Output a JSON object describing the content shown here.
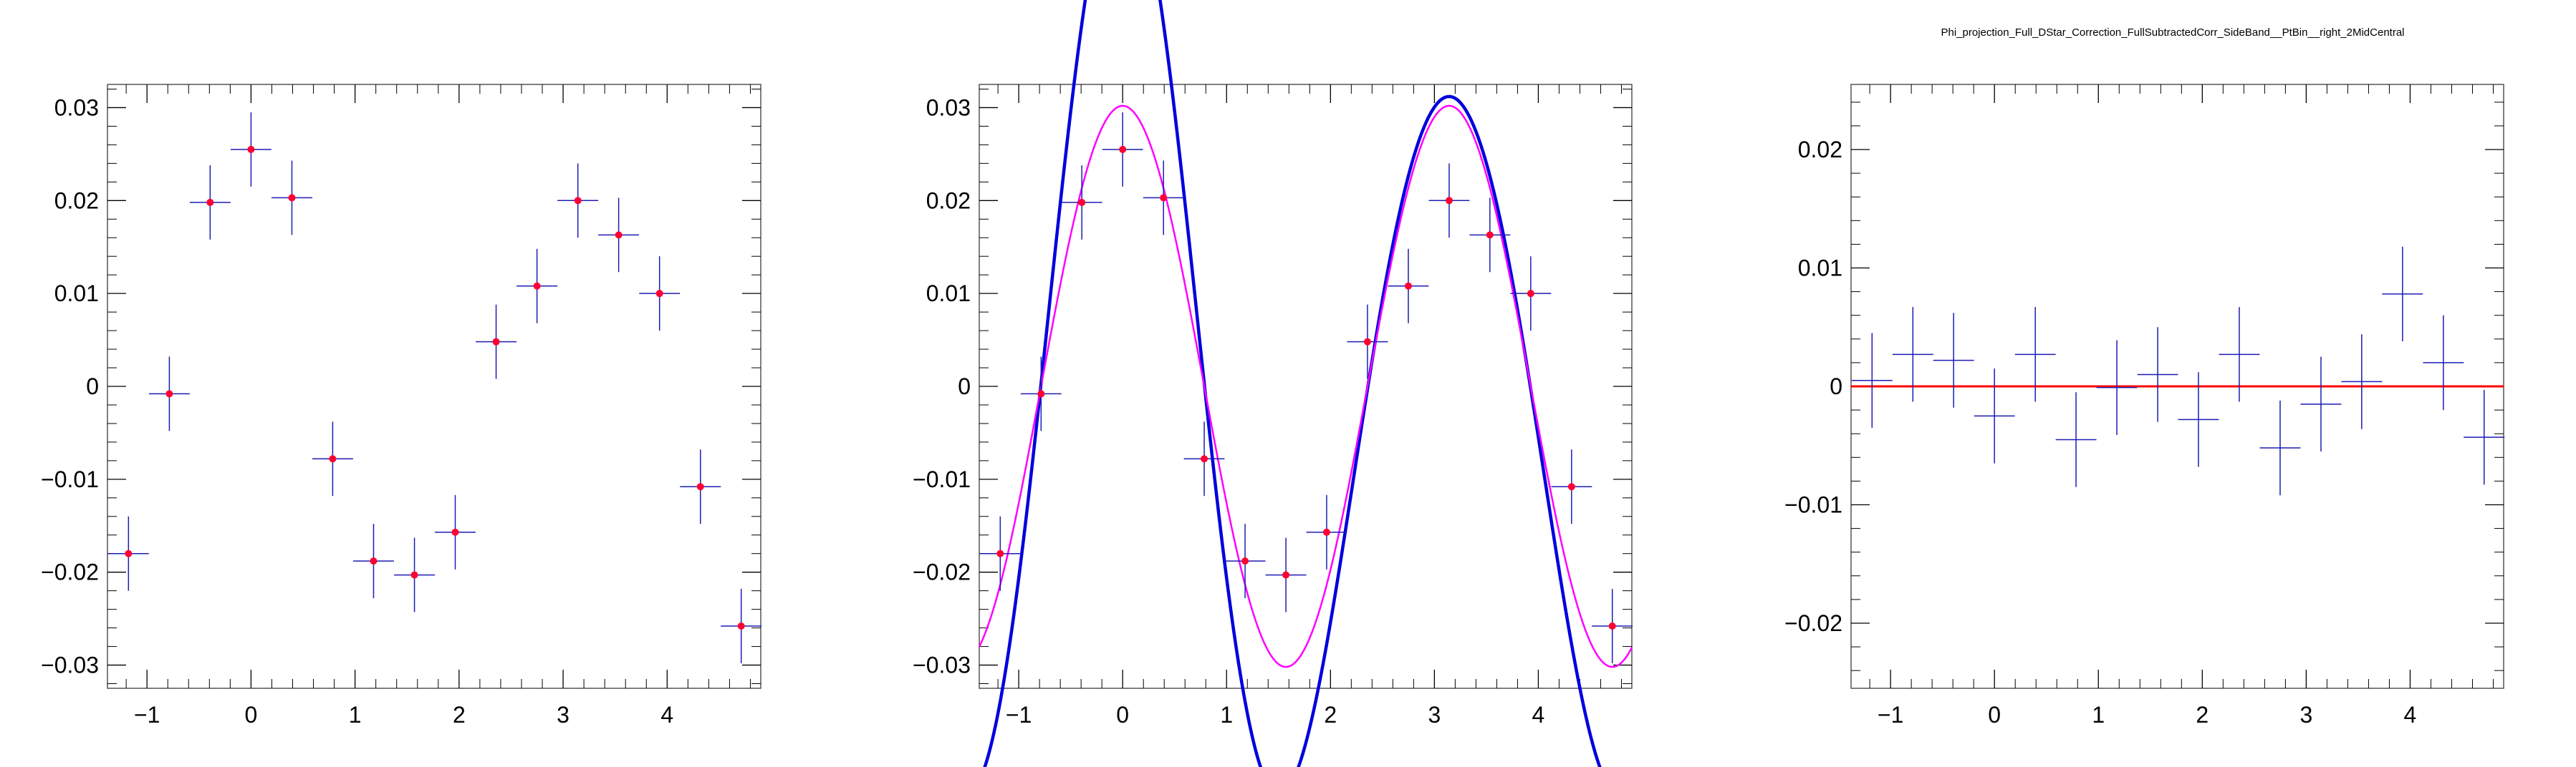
{
  "title": "Phi_projection_Full_DStar_Correction_FullSubtractedCorr_SideBand__PtBin__right_2MidCentral",
  "colors": {
    "marker": "#ff0033",
    "errorbar": "#1c1cb4",
    "fit_total": "#0000dd",
    "fit_component": "#ff00ff",
    "zero_line": "#ff0000",
    "frame": "#555555"
  },
  "chart_data": [
    {
      "type": "scatter",
      "name": "panel-1",
      "xlim": [
        -1.38,
        4.9
      ],
      "ylim": [
        -0.0325,
        0.0325
      ],
      "xticks": [
        -1,
        0,
        1,
        2,
        3,
        4
      ],
      "xtick_labels": [
        "−1",
        "0",
        "1",
        "2",
        "3",
        "4"
      ],
      "yticks": [
        -0.03,
        -0.02,
        -0.01,
        0,
        0.01,
        0.02,
        0.03
      ],
      "ytick_labels": [
        "−0.03",
        "−0.02",
        "−0.01",
        "0",
        "0.01",
        "0.02",
        "0.03"
      ],
      "show_markers": true,
      "x": [
        -1.178,
        -0.785,
        -0.393,
        0.0,
        0.393,
        0.785,
        1.178,
        1.571,
        1.963,
        2.356,
        2.749,
        3.142,
        3.534,
        3.927,
        4.32,
        4.712
      ],
      "y": [
        -0.018,
        -0.0008,
        0.0198,
        0.0255,
        0.0203,
        -0.0078,
        -0.0188,
        -0.0203,
        -0.0157,
        0.0048,
        0.0108,
        0.02,
        0.0163,
        0.01,
        -0.0108,
        -0.0258
      ],
      "yerr": [
        0.004,
        0.004,
        0.004,
        0.004,
        0.004,
        0.004,
        0.004,
        0.004,
        0.004,
        0.004,
        0.004,
        0.004,
        0.004,
        0.004,
        0.004,
        0.004
      ],
      "xerr": 0.196
    },
    {
      "type": "scatter",
      "name": "panel-2",
      "xlim": [
        -1.38,
        4.9
      ],
      "ylim": [
        -0.0325,
        0.0325
      ],
      "xticks": [
        -1,
        0,
        1,
        2,
        3,
        4
      ],
      "xtick_labels": [
        "−1",
        "0",
        "1",
        "2",
        "3",
        "4"
      ],
      "yticks": [
        -0.03,
        -0.02,
        -0.01,
        0,
        0.01,
        0.02,
        0.03
      ],
      "ytick_labels": [
        "−0.03",
        "−0.02",
        "−0.01",
        "0",
        "0.01",
        "0.02",
        "0.03"
      ],
      "show_markers": true,
      "x": [
        -1.178,
        -0.785,
        -0.393,
        0.0,
        0.393,
        0.785,
        1.178,
        1.571,
        1.963,
        2.356,
        2.749,
        3.142,
        3.534,
        3.927,
        4.32,
        4.712
      ],
      "y": [
        -0.018,
        -0.0008,
        0.0198,
        0.0255,
        0.0203,
        -0.0078,
        -0.0188,
        -0.0203,
        -0.0157,
        0.0048,
        0.0108,
        0.02,
        0.0163,
        0.01,
        -0.0108,
        -0.0258
      ],
      "yerr": [
        0.004,
        0.004,
        0.004,
        0.004,
        0.004,
        0.004,
        0.004,
        0.004,
        0.004,
        0.004,
        0.004,
        0.004,
        0.004,
        0.004,
        0.004,
        0.004
      ],
      "xerr": 0.196,
      "curves": [
        {
          "role": "fit_total",
          "c0": 0.0,
          "c1": 0.0032,
          "c2": 0.0218,
          "c3": 0.003
        },
        {
          "role": "fit_component",
          "c0": 0.0,
          "c1": 0.0,
          "c2": 0.0151,
          "c3": 0.0
        }
      ]
    },
    {
      "type": "scatter",
      "name": "panel-3",
      "xlim": [
        -1.38,
        4.9
      ],
      "ylim": [
        -0.0255,
        0.0255
      ],
      "xticks": [
        -1,
        0,
        1,
        2,
        3,
        4
      ],
      "xtick_labels": [
        "−1",
        "0",
        "1",
        "2",
        "3",
        "4"
      ],
      "yticks": [
        -0.02,
        -0.01,
        0,
        0.01,
        0.02
      ],
      "ytick_labels": [
        "−0.02",
        "−0.01",
        "0",
        "0.01",
        "0.02"
      ],
      "show_markers": false,
      "zero_line": true,
      "x": [
        -1.178,
        -0.785,
        -0.393,
        0.0,
        0.393,
        0.785,
        1.178,
        1.571,
        1.963,
        2.356,
        2.749,
        3.142,
        3.534,
        3.927,
        4.32,
        4.712
      ],
      "y": [
        0.0005,
        0.0027,
        0.0022,
        -0.0025,
        0.0027,
        -0.0045,
        -0.0001,
        0.001,
        -0.0028,
        0.0027,
        -0.0052,
        -0.0015,
        0.0004,
        0.0078,
        0.002,
        -0.0043
      ],
      "yerr": [
        0.004,
        0.004,
        0.004,
        0.004,
        0.004,
        0.004,
        0.004,
        0.004,
        0.004,
        0.004,
        0.004,
        0.004,
        0.004,
        0.004,
        0.004,
        0.004
      ],
      "xerr": 0.196
    }
  ]
}
